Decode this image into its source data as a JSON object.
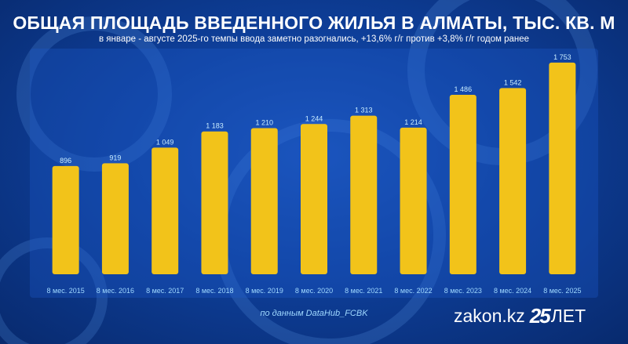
{
  "title": "ОБЩАЯ ПЛОЩАДЬ ВВЕДЕННОГО ЖИЛЬЯ В АЛМАТЫ, ТЫС. КВ. М",
  "subtitle": "в январе - августе 2025-го темпы ввода заметно разогнались, +13,6% г/г против +3,8% г/г годом ранее",
  "source": "по данным DataHub_FCBK",
  "brand": {
    "name": "zakon.kz",
    "anniversary_number": "25",
    "anniversary_word": "ЛЕТ"
  },
  "colors": {
    "bar": "#f2c31a",
    "value_label": "#c8ecff",
    "tick_label": "#9fd8ff"
  },
  "chart_data": {
    "type": "bar",
    "title": "ОБЩАЯ ПЛОЩАДЬ ВВЕДЕННОГО ЖИЛЬЯ В АЛМАТЫ, ТЫС. КВ. М",
    "categories": [
      "8 мес. 2015",
      "8 мес. 2016",
      "8 мес. 2017",
      "8 мес. 2018",
      "8 мес. 2019",
      "8 мес. 2020",
      "8 мес. 2021",
      "8 мес. 2022",
      "8 мес. 2023",
      "8 мес. 2024",
      "8 мес. 2025"
    ],
    "values": [
      896,
      919,
      1049,
      1183,
      1210,
      1244,
      1313,
      1214,
      1486,
      1542,
      1753
    ],
    "value_labels": [
      "896",
      "919",
      "1 049",
      "1 183",
      "1 210",
      "1 244",
      "1 313",
      "1 214",
      "1 486",
      "1 542",
      "1 753"
    ],
    "ylim": [
      0,
      1830
    ],
    "grid": false,
    "legend": "none"
  }
}
